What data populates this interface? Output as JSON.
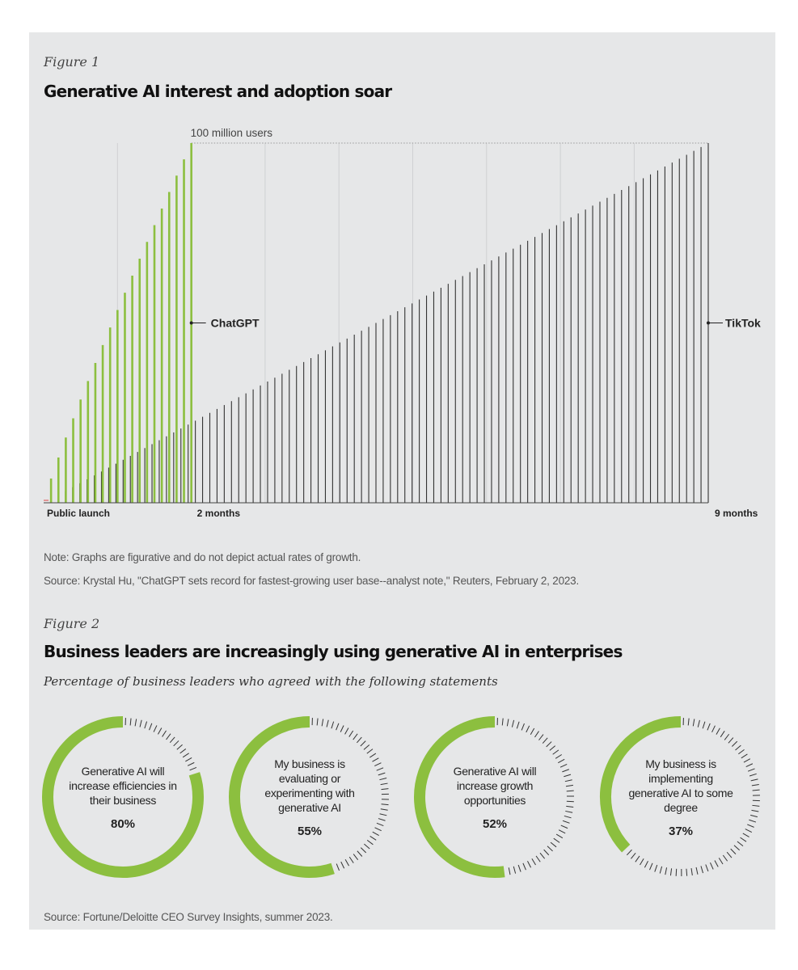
{
  "figure1": {
    "label": "Figure 1",
    "title": "Generative AI interest and adoption soar",
    "chart_data": {
      "type": "bar",
      "title": "Generative AI interest and adoption soar",
      "ymax_label": "100 million users",
      "ylim": [
        0,
        100
      ],
      "x_unit": "months",
      "xlim": [
        0,
        9
      ],
      "x_tick_labels": [
        "Public launch",
        "2 months",
        "9 months"
      ],
      "series": [
        {
          "name": "ChatGPT",
          "color": "#8cbf3f",
          "months_to_100m": 2,
          "growth": "accelerating",
          "bar_count": 20
        },
        {
          "name": "TikTok",
          "color": "#333333",
          "months_to_100m": 9,
          "growth": "linear",
          "bar_count": 92
        }
      ]
    },
    "notes": [
      "Note: Graphs are figurative and do not depict actual rates of growth.",
      "Source: Krystal Hu, \"ChatGPT sets record for fastest-growing user base--analyst note,\" Reuters, February 2, 2023."
    ]
  },
  "figure2": {
    "label": "Figure 2",
    "title": "Business leaders are increasingly using generative AI in enterprises",
    "subtitle": "Percentage of business leaders who agreed with the following statements",
    "chart_data": {
      "type": "pie",
      "title": "Business leaders are increasingly using generative AI in enterprises",
      "categories": [
        "Generative AI will increase efficiencies in their business",
        "My business is evaluating or experimenting with generative AI",
        "Generative AI will increase growth opportunities",
        "My business is implementing generative AI to some degree"
      ],
      "values": [
        80,
        55,
        52,
        37
      ],
      "value_labels": [
        "80%",
        "55%",
        "52%",
        "37%"
      ],
      "accent_color": "#8cbf3f"
    },
    "source": "Source: Fortune/Deloitte CEO Survey Insights, summer 2023."
  }
}
